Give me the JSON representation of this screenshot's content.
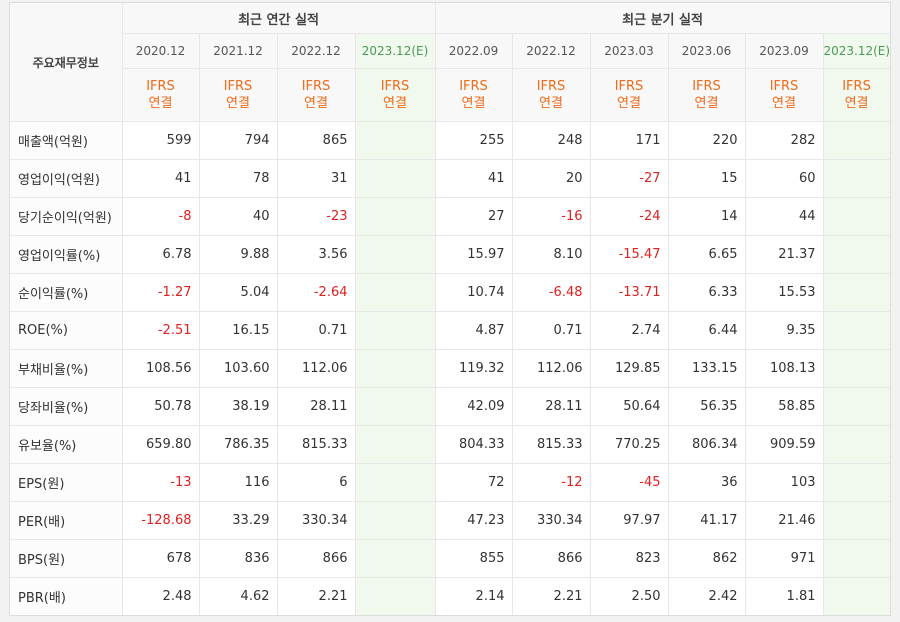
{
  "header": {
    "main_label": "주요재무정보",
    "annual_label": "최근 연간 실적",
    "quarter_label": "최근 분기 실적",
    "periods": [
      {
        "date": "2020.12",
        "std": "IFRS",
        "type": "연결",
        "estimate": false
      },
      {
        "date": "2021.12",
        "std": "IFRS",
        "type": "연결",
        "estimate": false
      },
      {
        "date": "2022.12",
        "std": "IFRS",
        "type": "연결",
        "estimate": false
      },
      {
        "date": "2023.12(E)",
        "std": "IFRS",
        "type": "연결",
        "estimate": true
      },
      {
        "date": "2022.09",
        "std": "IFRS",
        "type": "연결",
        "estimate": false
      },
      {
        "date": "2022.12",
        "std": "IFRS",
        "type": "연결",
        "estimate": false
      },
      {
        "date": "2023.03",
        "std": "IFRS",
        "type": "연결",
        "estimate": false
      },
      {
        "date": "2023.06",
        "std": "IFRS",
        "type": "연결",
        "estimate": false
      },
      {
        "date": "2023.09",
        "std": "IFRS",
        "type": "연결",
        "estimate": false
      },
      {
        "date": "2023.12(E)",
        "std": "IFRS",
        "type": "연결",
        "estimate": true
      }
    ]
  },
  "rows": [
    {
      "label": "매출액(억원)",
      "values": [
        "599",
        "794",
        "865",
        "",
        "255",
        "248",
        "171",
        "220",
        "282",
        ""
      ]
    },
    {
      "label": "영업이익(억원)",
      "values": [
        "41",
        "78",
        "31",
        "",
        "41",
        "20",
        "-27",
        "15",
        "60",
        ""
      ]
    },
    {
      "label": "당기순이익(억원)",
      "values": [
        "-8",
        "40",
        "-23",
        "",
        "27",
        "-16",
        "-24",
        "14",
        "44",
        ""
      ]
    },
    {
      "label": "영업이익률(%)",
      "values": [
        "6.78",
        "9.88",
        "3.56",
        "",
        "15.97",
        "8.10",
        "-15.47",
        "6.65",
        "21.37",
        ""
      ]
    },
    {
      "label": "순이익률(%)",
      "values": [
        "-1.27",
        "5.04",
        "-2.64",
        "",
        "10.74",
        "-6.48",
        "-13.71",
        "6.33",
        "15.53",
        ""
      ]
    },
    {
      "label": "ROE(%)",
      "values": [
        "-2.51",
        "16.15",
        "0.71",
        "",
        "4.87",
        "0.71",
        "2.74",
        "6.44",
        "9.35",
        ""
      ]
    },
    {
      "label": "부채비율(%)",
      "values": [
        "108.56",
        "103.60",
        "112.06",
        "",
        "119.32",
        "112.06",
        "129.85",
        "133.15",
        "108.13",
        ""
      ]
    },
    {
      "label": "당좌비율(%)",
      "values": [
        "50.78",
        "38.19",
        "28.11",
        "",
        "42.09",
        "28.11",
        "50.64",
        "56.35",
        "58.85",
        ""
      ]
    },
    {
      "label": "유보율(%)",
      "values": [
        "659.80",
        "786.35",
        "815.33",
        "",
        "804.33",
        "815.33",
        "770.25",
        "806.34",
        "909.59",
        ""
      ]
    },
    {
      "label": "EPS(원)",
      "values": [
        "-13",
        "116",
        "6",
        "",
        "72",
        "-12",
        "-45",
        "36",
        "103",
        ""
      ]
    },
    {
      "label": "PER(배)",
      "values": [
        "-128.68",
        "33.29",
        "330.34",
        "",
        "47.23",
        "330.34",
        "97.97",
        "41.17",
        "21.46",
        ""
      ]
    },
    {
      "label": "BPS(원)",
      "values": [
        "678",
        "836",
        "866",
        "",
        "855",
        "866",
        "823",
        "862",
        "971",
        ""
      ]
    },
    {
      "label": "PBR(배)",
      "values": [
        "2.48",
        "4.62",
        "2.21",
        "",
        "2.14",
        "2.21",
        "2.50",
        "2.42",
        "1.81",
        ""
      ]
    }
  ],
  "colors": {
    "negative": "#e02020",
    "ifrs_text": "#ef6a1a",
    "estimate_bg": "#f1f8ee",
    "estimate_date": "#4a9a55"
  }
}
